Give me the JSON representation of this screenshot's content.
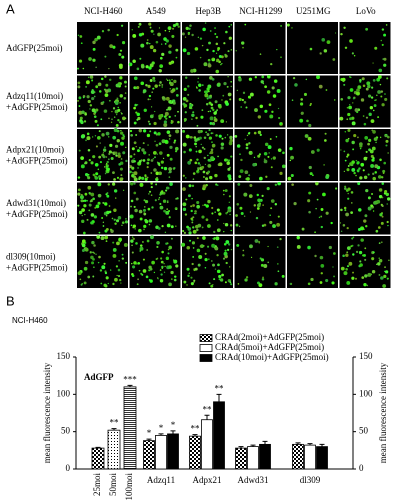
{
  "panel_a": {
    "label": "A",
    "columns": [
      "NCI-H460",
      "A549",
      "Hep3B",
      "NCI-H1299",
      "U251MG",
      "LoVo"
    ],
    "rows": [
      [
        "AdGFP(25moi)"
      ],
      [
        "Adzq11(10moi)",
        "+AdGFP(25moi)"
      ],
      [
        "Adpx21(10moi)",
        "+AdGFP(25moi)"
      ],
      [
        "Adwd31(10moi)",
        "+AdGFP(25moi)"
      ],
      [
        "dl309(10moi)",
        "+AdGFP(25moi)"
      ]
    ]
  },
  "panel_b": {
    "label": "B",
    "cell_line": "NCI-H460"
  },
  "chart_data": [
    {
      "type": "bar",
      "title": "AdGFP",
      "ylabel": "mean fluorescence intensity",
      "categories": [
        "25moi",
        "50moi",
        "100moi"
      ],
      "values": [
        28,
        52,
        110
      ],
      "errors": [
        1,
        2,
        2
      ],
      "annotations": [
        null,
        "**",
        "***"
      ],
      "patterns": [
        "checker",
        "dots",
        "hlines"
      ],
      "ylim": [
        0,
        150
      ],
      "yticks": [
        0,
        50,
        100,
        150
      ]
    },
    {
      "type": "grouped_bar",
      "ylabel": "mean fluorescence intensity",
      "categories": [
        "Adzq11",
        "Adpx21",
        "Adwd31",
        "dl309"
      ],
      "series": [
        {
          "name": "CRAd(2moi)+AdGFP(25moi)",
          "pattern": "checker",
          "values": [
            38,
            44,
            28,
            33
          ],
          "errors": [
            2,
            2,
            2,
            2
          ],
          "annotations": [
            "*",
            "**",
            null,
            null
          ]
        },
        {
          "name": "CRAd(5moi)+AdGFP(25moi)",
          "pattern": "white",
          "values": [
            45,
            66,
            30,
            32
          ],
          "errors": [
            2,
            6,
            2,
            2
          ],
          "annotations": [
            "*",
            "**",
            null,
            null
          ]
        },
        {
          "name": "CRAd(10moi)+AdGFP(25moi)",
          "pattern": "black",
          "values": [
            47,
            90,
            33,
            30
          ],
          "errors": [
            4,
            10,
            4,
            3
          ],
          "annotations": [
            "*",
            "**",
            null,
            null
          ]
        }
      ],
      "legend": "top-right",
      "ylim": [
        0,
        150
      ],
      "yticks": [
        0,
        50,
        100,
        150
      ]
    }
  ]
}
